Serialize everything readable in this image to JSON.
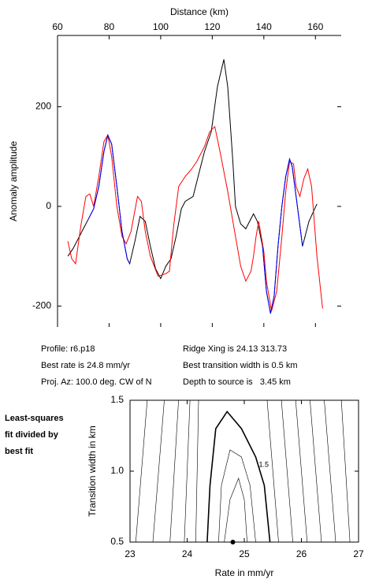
{
  "chart_data": [
    {
      "type": "line",
      "xlabel": "Distance (km)",
      "ylabel": "Anomaly amplitude",
      "xlim": [
        60,
        170
      ],
      "ylim": [
        -242,
        343
      ],
      "xticks": [
        60,
        80,
        100,
        120,
        140,
        160
      ],
      "yticks": [
        -200,
        0,
        200
      ],
      "series": [
        {
          "color": "#000000",
          "x": [
            64,
            66,
            68,
            70,
            72,
            74,
            76,
            78,
            79.5,
            81,
            83,
            85,
            87,
            88,
            90,
            92,
            94,
            96,
            98,
            100,
            102,
            104,
            106,
            108,
            109.5,
            112.6,
            115,
            117,
            119.6,
            122,
            124.5,
            126,
            128,
            129,
            131,
            133,
            136,
            137.5,
            139.5,
            141,
            142.6,
            144,
            145.5,
            147,
            148.5,
            150,
            151,
            153,
            155,
            157.5,
            160.6
          ],
          "values": [
            -100,
            -85,
            -65,
            -45,
            -25,
            -5,
            40,
            110,
            143,
            125,
            40,
            -50,
            -105,
            -115,
            -70,
            -20,
            -30,
            -80,
            -125,
            -145,
            -120,
            -105,
            -60,
            -5,
            10,
            20,
            70,
            110,
            150,
            240,
            295,
            240,
            90,
            0,
            -35,
            -45,
            -15,
            -30,
            -80,
            -170,
            -215,
            -180,
            -80,
            0,
            60,
            95,
            80,
            0,
            -80,
            -30,
            5
          ]
        },
        {
          "color": "#ff0000",
          "x": [
            64,
            65.5,
            67,
            69,
            71,
            72.5,
            74,
            76,
            78,
            79.5,
            81,
            83,
            85,
            86.6,
            88.5,
            91,
            92.5,
            94,
            96,
            99,
            102,
            103.4,
            105,
            107,
            109.5,
            112,
            114,
            117,
            119,
            121,
            123,
            126,
            129,
            131,
            133,
            135,
            136,
            137,
            138,
            140,
            141,
            143,
            145,
            147,
            148.5,
            150,
            151.5,
            152.5,
            154,
            155.5,
            157,
            158.5,
            160.6,
            162.8
          ],
          "values": [
            -70,
            -105,
            -115,
            -40,
            20,
            25,
            0,
            60,
            130,
            143,
            100,
            0,
            -60,
            -75,
            -50,
            20,
            10,
            -50,
            -100,
            -140,
            -135,
            -130,
            -40,
            40,
            60,
            75,
            90,
            120,
            150,
            160,
            110,
            30,
            -60,
            -120,
            -150,
            -130,
            -100,
            -60,
            -30,
            -90,
            -150,
            -210,
            -170,
            -60,
            30,
            90,
            85,
            40,
            20,
            55,
            75,
            40,
            -100,
            -205
          ]
        },
        {
          "color": "#0000ff",
          "x": [
            72,
            74,
            76,
            78,
            79.5,
            81,
            83,
            85,
            87,
            88
          ],
          "values": [
            -25,
            -5,
            40,
            110,
            143,
            125,
            40,
            -50,
            -105,
            -115
          ]
        },
        {
          "color": "#0000ff",
          "x": [
            139.5,
            141,
            142.6,
            144,
            145.5,
            147,
            148.5,
            150,
            151,
            153,
            155
          ],
          "values": [
            -80,
            -170,
            -215,
            -180,
            -80,
            0,
            60,
            95,
            80,
            0,
            -80
          ]
        }
      ]
    },
    {
      "type": "contour",
      "xlabel": "Rate in mm/yr",
      "ylabel": "Transition width in km",
      "xlim": [
        23,
        27
      ],
      "ylim": [
        0.5,
        1.5
      ],
      "xticks": [
        23,
        24,
        25,
        26,
        27
      ],
      "yticks": [
        0.5,
        {
          "value": 1,
          "label": "1.0"
        },
        1.5
      ],
      "contours": [
        {
          "x": [
            24.35,
            24.4,
            24.5,
            24.7,
            24.95,
            25.2,
            25.35,
            25.45
          ],
          "values": [
            0.5,
            0.9,
            1.3,
            1.42,
            1.3,
            1.1,
            0.9,
            0.5
          ],
          "bold": true,
          "level": 1.5
        },
        {
          "x": [
            24.55,
            24.6,
            24.75,
            24.95,
            25.1,
            25.2
          ],
          "values": [
            0.5,
            0.9,
            1.15,
            1.1,
            0.9,
            0.5
          ]
        },
        {
          "x": [
            24.65,
            24.75,
            24.9,
            25.0,
            25.05
          ],
          "values": [
            0.5,
            0.8,
            0.95,
            0.8,
            0.5
          ]
        },
        {
          "x": [
            23.1,
            23.3
          ],
          "values": [
            0.5,
            1.5
          ]
        },
        {
          "x": [
            23.4,
            23.6
          ],
          "values": [
            0.5,
            1.5
          ]
        },
        {
          "x": [
            23.7,
            23.85
          ],
          "values": [
            0.5,
            1.5
          ]
        },
        {
          "x": [
            23.95,
            24.05
          ],
          "values": [
            0.5,
            1.5
          ]
        },
        {
          "x": [
            24.15,
            24.2
          ],
          "values": [
            0.5,
            1.5
          ]
        },
        {
          "x": [
            25.6,
            25.4
          ],
          "values": [
            0.5,
            1.5
          ]
        },
        {
          "x": [
            25.85,
            25.65
          ],
          "values": [
            0.5,
            1.5
          ]
        },
        {
          "x": [
            26.1,
            25.9
          ],
          "values": [
            0.5,
            1.5
          ]
        },
        {
          "x": [
            26.35,
            26.15
          ],
          "values": [
            0.5,
            1.5
          ]
        },
        {
          "x": [
            26.6,
            26.4
          ],
          "values": [
            0.5,
            1.5
          ]
        },
        {
          "x": [
            26.85,
            26.7
          ],
          "values": [
            0.5,
            1.5
          ]
        }
      ],
      "points": {
        "x": [
          24.8
        ],
        "values": [
          0.5
        ]
      }
    }
  ],
  "annotations": [
    "Profile: r6.p18",
    "Best rate is 24.8 mm/yr",
    "Proj. Az: 100.0 deg. CW of N",
    "Ridge Xing is 24.13 313.73",
    "Best transition width is 0.5 km",
    "Depth to source is   3.45 km"
  ],
  "side_note": [
    "Least-squares",
    "fit divided by",
    "best fit"
  ]
}
